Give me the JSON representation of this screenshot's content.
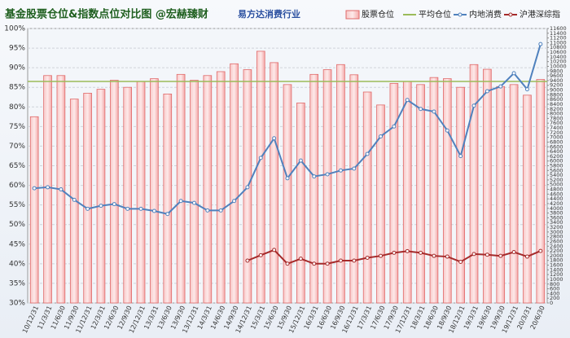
{
  "chart_data": {
    "type": "bar",
    "title": "基金股票仓位&指数点位对比图 @宏赫臻财",
    "subtitle": "易方达消费行业",
    "categories": [
      "10/12/31",
      "11/3/31",
      "11/6/30",
      "11/9/30",
      "11/12/31",
      "12/3/31",
      "12/6/30",
      "12/9/30",
      "12/12/31",
      "13/3/31",
      "13/6/30",
      "13/9/30",
      "13/12/31",
      "14/3/31",
      "14/6/30",
      "14/9/30",
      "14/12/31",
      "15/3/31",
      "15/6/30",
      "15/9/30",
      "15/12/31",
      "16/3/31",
      "16/6/30",
      "16/9/30",
      "16/12/31",
      "17/3/31",
      "17/6/30",
      "17/9/30",
      "17/12/31",
      "18/3/31",
      "18/6/30",
      "18/9/30",
      "18/12/31",
      "19/3/31",
      "19/6/30",
      "19/9/30",
      "19/12/31",
      "20/3/31",
      "20/6/30"
    ],
    "series": [
      {
        "name": "股票仓位",
        "type": "bar",
        "color": "#f4a9a9",
        "values": [
          77.5,
          88,
          88,
          82,
          83.5,
          84.5,
          86.8,
          85,
          86.5,
          87.2,
          83.3,
          88.3,
          86.8,
          88,
          89,
          91,
          89.5,
          94.2,
          91.3,
          85.7,
          81,
          88.3,
          89.5,
          90.8,
          88.2,
          83.8,
          80.5,
          86,
          86.5,
          85.7,
          87.5,
          87.2,
          85,
          90.8,
          89.6,
          85.2,
          85.7,
          83,
          87
        ]
      },
      {
        "name": "平均仓位",
        "type": "hline",
        "color": "#9bbb59",
        "value": 86.5
      },
      {
        "name": "内地消费",
        "type": "line",
        "axis": "y2",
        "color": "#4f81bd",
        "values": [
          4850,
          4890,
          4800,
          4360,
          3980,
          4110,
          4180,
          3980,
          3980,
          3890,
          3760,
          4310,
          4230,
          3910,
          3910,
          4310,
          4890,
          6130,
          6960,
          5270,
          6020,
          5350,
          5440,
          5600,
          5680,
          6300,
          7040,
          7460,
          8580,
          8200,
          8090,
          7290,
          6210,
          8340,
          8950,
          9150,
          9710,
          9030,
          10940
        ]
      },
      {
        "name": "沪港深综指",
        "type": "line",
        "axis": "y2",
        "color": "#a52a2a",
        "values": [
          null,
          null,
          null,
          null,
          null,
          null,
          null,
          null,
          null,
          null,
          null,
          null,
          null,
          null,
          null,
          null,
          1790,
          2020,
          2240,
          1660,
          1870,
          1660,
          1660,
          1790,
          1790,
          1910,
          1990,
          2120,
          2190,
          2120,
          1990,
          1960,
          1740,
          2070,
          2040,
          1990,
          2150,
          1960,
          2200
        ]
      }
    ],
    "ylim": [
      30,
      100
    ],
    "yticks": [
      {
        "value": 30,
        "label": "30%"
      },
      {
        "value": 35,
        "label": "35%"
      },
      {
        "value": 40,
        "label": "40%"
      },
      {
        "value": 45,
        "label": "45%"
      },
      {
        "value": 50,
        "label": "50%"
      },
      {
        "value": 55,
        "label": "55%"
      },
      {
        "value": 60,
        "label": "60%"
      },
      {
        "value": 65,
        "label": "65%"
      },
      {
        "value": 70,
        "label": "70%"
      },
      {
        "value": 75,
        "label": "75%"
      },
      {
        "value": 80,
        "label": "80%"
      },
      {
        "value": 85,
        "label": "85%"
      },
      {
        "value": 90,
        "label": "90%"
      },
      {
        "value": 95,
        "label": "95%"
      },
      {
        "value": 100,
        "label": "100%"
      }
    ],
    "y2lim": [
      0,
      11600
    ],
    "y2ticks": [
      0,
      200,
      400,
      600,
      800,
      1000,
      1200,
      1400,
      1600,
      1800,
      2000,
      2200,
      2400,
      2600,
      2800,
      3000,
      3200,
      3400,
      3600,
      3800,
      4000,
      4200,
      4400,
      4600,
      4800,
      5000,
      5200,
      5400,
      5600,
      5800,
      6000,
      6200,
      6400,
      6600,
      6800,
      7000,
      7200,
      7400,
      7600,
      7800,
      8000,
      8200,
      8400,
      8600,
      8800,
      9000,
      9200,
      9400,
      9600,
      9800,
      10000,
      10200,
      10400,
      10600,
      10800,
      11000,
      11200,
      11400,
      11600
    ],
    "grid": true,
    "legend": "top-right"
  }
}
